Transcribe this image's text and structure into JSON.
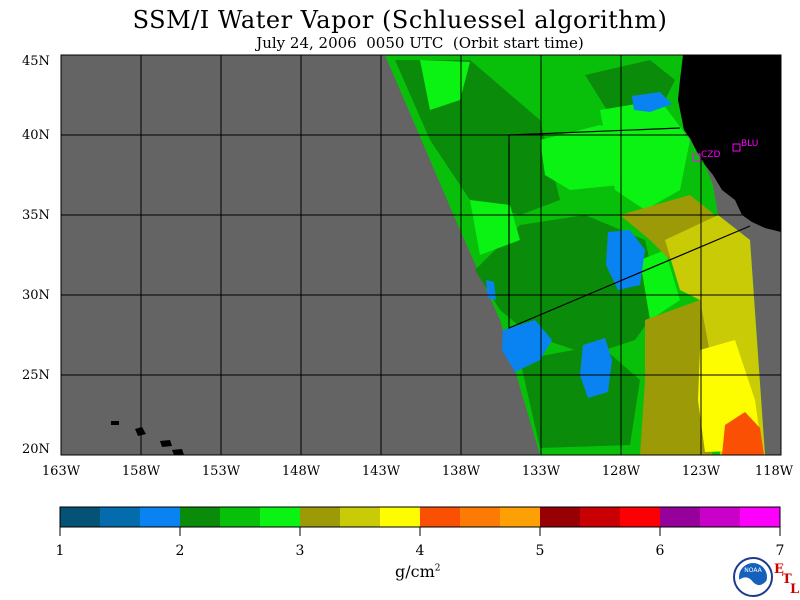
{
  "title": "SSM/I Water Vapor (Schluessel algorithm)",
  "subtitle": "July 24, 2006  0050 UTC  (Orbit start time)",
  "latitude_labels": [
    "45N",
    "40N",
    "35N",
    "30N",
    "25N",
    "20N"
  ],
  "longitude_labels": [
    "163W",
    "158W",
    "153W",
    "148W",
    "143W",
    "138W",
    "133W",
    "128W",
    "123W",
    "118W"
  ],
  "stations": [
    {
      "name": "CZD"
    },
    {
      "name": "BLU"
    }
  ],
  "colorbar": {
    "ticks": [
      "1",
      "2",
      "3",
      "4",
      "5",
      "6",
      "7"
    ],
    "units_prefix": "g/cm",
    "units_exponent": "2",
    "colors": [
      "#045276",
      "#046cad",
      "#0a83f2",
      "#0a8c0a",
      "#08c00a",
      "#0af312",
      "#9c9a06",
      "#c8cb06",
      "#fdfd00",
      "#fa5004",
      "#fc7b04",
      "#fca004",
      "#960004",
      "#c80004",
      "#fc0004",
      "#96009b",
      "#c800c8",
      "#fc00fc"
    ]
  },
  "colors": {
    "no_data": "#646464",
    "land": "#000000",
    "station": "#ff00ff"
  },
  "logo": {
    "text": "NOAA"
  },
  "agency": {
    "letters": [
      "E",
      "T",
      "L"
    ]
  }
}
